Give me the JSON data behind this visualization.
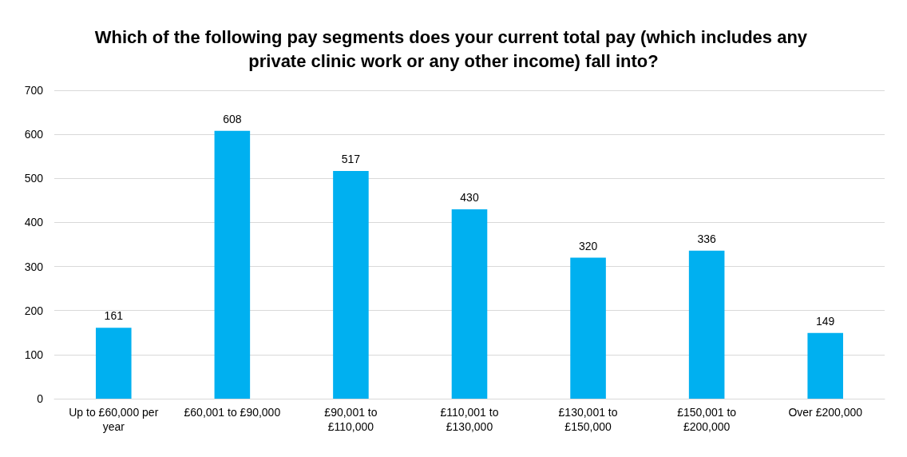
{
  "chart_data": {
    "type": "bar",
    "title": "Which of the following pay segments does your current total pay (which includes any private clinic work or any other income) fall into?",
    "categories": [
      "Up to £60,000 per year",
      "£60,001 to £90,000",
      "£90,001 to £110,000",
      "£110,001 to £130,000",
      "£130,001 to £150,000",
      "£150,001 to £200,000",
      "Over £200,000"
    ],
    "values": [
      161,
      608,
      517,
      430,
      320,
      336,
      149
    ],
    "color": "#00b0f0",
    "ylim": [
      0,
      700
    ],
    "yticks": [
      0,
      100,
      200,
      300,
      400,
      500,
      600,
      700
    ],
    "grid": "y",
    "data_labels": true
  }
}
